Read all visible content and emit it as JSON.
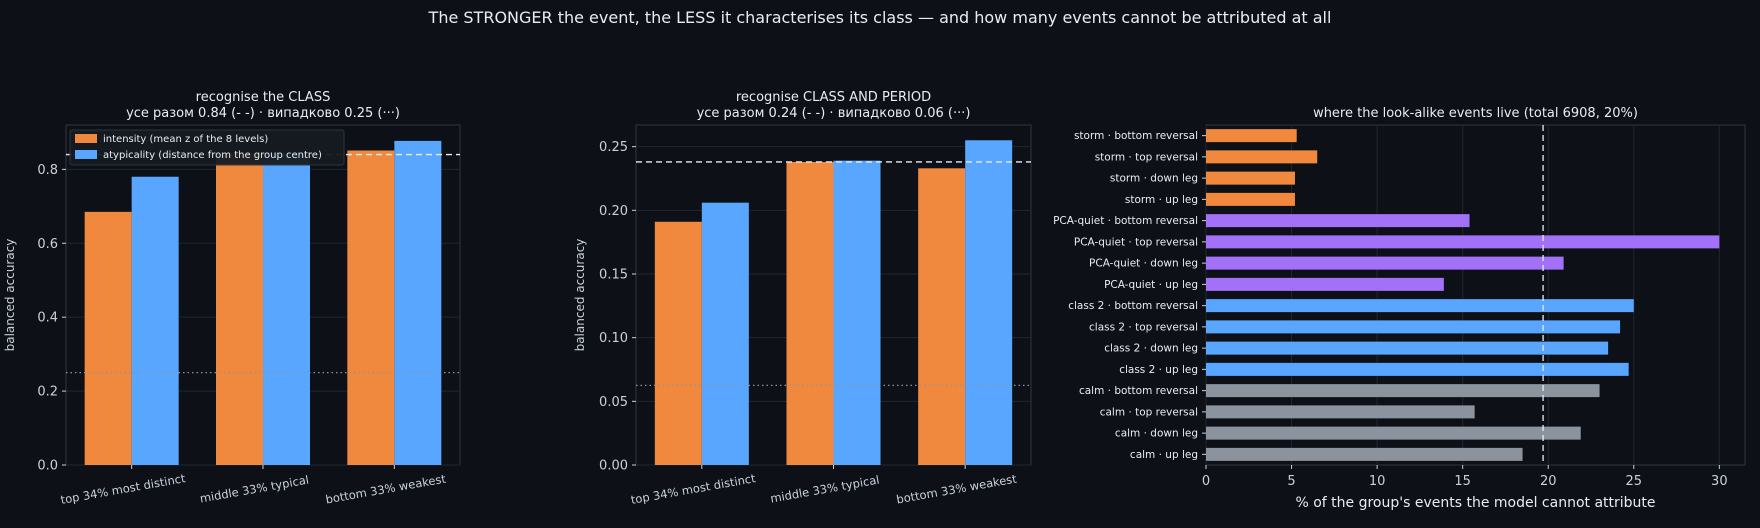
{
  "figure_title": "The STRONGER the event, the LESS it characterises its class — and how many events cannot be attributed at all",
  "colors": {
    "background": "#0d1117",
    "intensity": "#f0883e",
    "atypicality": "#58a6ff",
    "storm": "#f0883e",
    "pca_quiet": "#a371f7",
    "class2": "#58a6ff",
    "calm": "#8b949e",
    "text": "#e6edf3"
  },
  "chart_data": [
    {
      "type": "bar",
      "title_line1": "recognise the CLASS",
      "title_line2": "усе разом 0.84 (- -) · випадково 0.25 (···)",
      "ylabel": "balanced accuracy",
      "categories": [
        "top 34% most distinct",
        "middle 33% typical",
        "bottom 33% weakest"
      ],
      "series": [
        {
          "name": "intensity (mean z of the 8 levels)",
          "values": [
            0.685,
            0.843,
            0.851
          ]
        },
        {
          "name": "atypicality (distance from the group centre)",
          "values": [
            0.78,
            0.845,
            0.877
          ]
        }
      ],
      "ylim": [
        0,
        0.92
      ],
      "yticks": [
        "0.0",
        "0.2",
        "0.4",
        "0.6",
        "0.8"
      ],
      "ytick_values": [
        0,
        0.2,
        0.4,
        0.6,
        0.8
      ],
      "overall_line": 0.84,
      "chance_line": 0.25,
      "legend": "top-left"
    },
    {
      "type": "bar",
      "title_line1": "recognise CLASS AND PERIOD",
      "title_line2": "усе разом 0.24 (- -) · випадково 0.06 (···)",
      "ylabel": "balanced accuracy",
      "categories": [
        "top 34% most distinct",
        "middle 33% typical",
        "bottom 33% weakest"
      ],
      "series": [
        {
          "name": "intensity",
          "values": [
            0.191,
            0.238,
            0.233
          ]
        },
        {
          "name": "atypicality",
          "values": [
            0.206,
            0.239,
            0.255
          ]
        }
      ],
      "ylim": [
        0,
        0.267
      ],
      "yticks": [
        "0.00",
        "0.05",
        "0.10",
        "0.15",
        "0.20",
        "0.25"
      ],
      "ytick_values": [
        0,
        0.05,
        0.1,
        0.15,
        0.2,
        0.25
      ],
      "overall_line": 0.238,
      "chance_line": 0.0625
    },
    {
      "type": "bar",
      "orientation": "horizontal",
      "title": "where the look-alike events live (total 6908, 20%)",
      "xlabel": "% of the group's events the model cannot attribute",
      "categories": [
        "storm · bottom reversal",
        "storm · top reversal",
        "storm · down leg",
        "storm · up leg",
        "PCA-quiet · bottom reversal",
        "PCA-quiet · top reversal",
        "PCA-quiet · down leg",
        "PCA-quiet · up leg",
        "class 2 · bottom reversal",
        "class 2 · top reversal",
        "class 2 · down leg",
        "class 2 · up leg",
        "calm · bottom reversal",
        "calm · top reversal",
        "calm · down leg",
        "calm · up leg"
      ],
      "groups": [
        "storm",
        "storm",
        "storm",
        "storm",
        "pca_quiet",
        "pca_quiet",
        "pca_quiet",
        "pca_quiet",
        "class2",
        "class2",
        "class2",
        "class2",
        "calm",
        "calm",
        "calm",
        "calm"
      ],
      "values": [
        5.3,
        6.5,
        5.2,
        5.2,
        15.4,
        30.0,
        20.9,
        13.9,
        25.0,
        24.2,
        23.5,
        24.7,
        23.0,
        15.7,
        21.9,
        18.5
      ],
      "xlim": [
        0,
        31.5
      ],
      "xticks": [
        "0",
        "5",
        "10",
        "15",
        "20",
        "25",
        "30"
      ],
      "xtick_values": [
        0,
        5,
        10,
        15,
        20,
        25,
        30
      ],
      "reference_line": 19.7
    }
  ]
}
